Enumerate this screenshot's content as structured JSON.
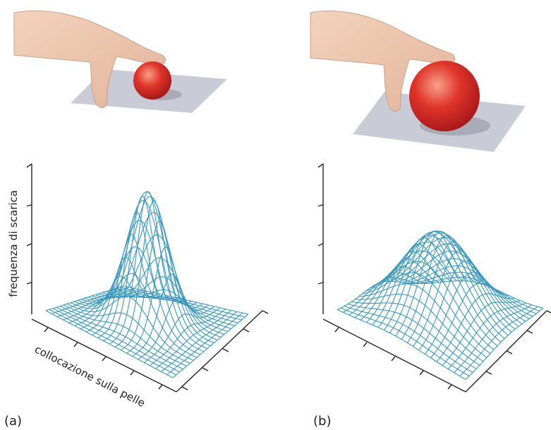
{
  "panels": [
    {
      "label": "(a)",
      "y_axis_label": "frequenza di scarica",
      "x_axis_label": "collocazione sulla pelle"
    },
    {
      "label": "(b)"
    }
  ]
}
